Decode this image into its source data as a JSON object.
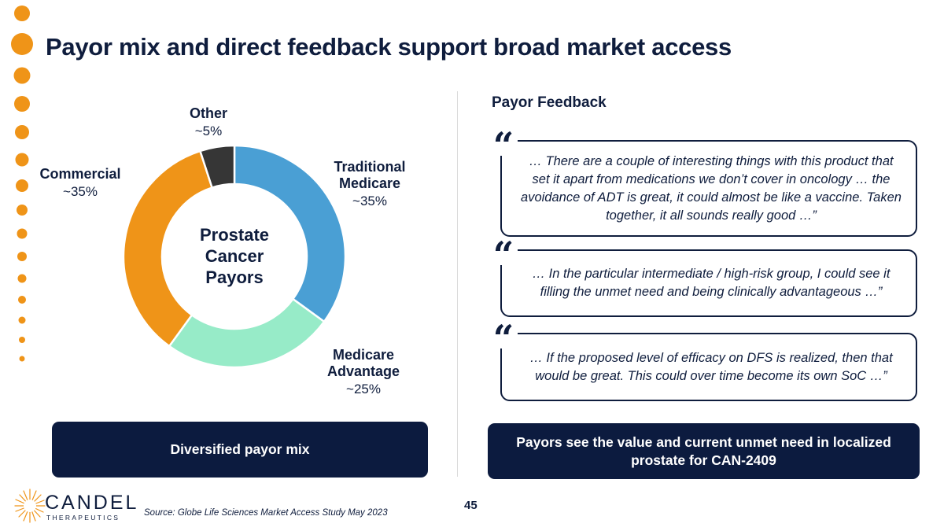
{
  "title": "Payor mix and direct feedback support broad market access",
  "chart_data": {
    "type": "pie",
    "donut": true,
    "center_label": [
      "Prostate",
      "Cancer",
      "Payors"
    ],
    "slices": [
      {
        "name": "Traditional Medicare",
        "name_lines": [
          "Traditional",
          "Medicare"
        ],
        "label": "~35%",
        "value": 35,
        "color": "#4a9fd4"
      },
      {
        "name": "Medicare Advantage",
        "name_lines": [
          "Medicare",
          "Advantage"
        ],
        "label": "~25%",
        "value": 25,
        "color": "#97ebc8"
      },
      {
        "name": "Commercial",
        "name_lines": [
          "Commercial"
        ],
        "label": "~35%",
        "value": 35,
        "color": "#ef9418"
      },
      {
        "name": "Other",
        "name_lines": [
          "Other"
        ],
        "label": "~5%",
        "value": 5,
        "color": "#363636"
      }
    ]
  },
  "feedback": {
    "heading": "Payor Feedback",
    "quote_mark": "“",
    "quotes": [
      "… There are a couple of interesting things with this product that set it apart from medications we don’t cover in oncology … the avoidance of ADT is great, it could almost be like a vaccine. Taken together, it all sounds really good …”",
      "… In the particular intermediate / high-risk group, I could see it filling the unmet need and being clinically advantageous …”",
      "… If the proposed level of efficacy on DFS is realized, then that would be great. This could over time become its own SoC …”"
    ]
  },
  "callouts": {
    "left": "Diversified payor mix",
    "right": "Payors see the value and current unmet need in localized prostate for CAN-2409"
  },
  "footer": {
    "page_number": "45",
    "source": "Source: Globe Life Sciences Market Access Study May 2023",
    "logo_name": "CANDEL",
    "logo_sub": "THERAPEUTICS"
  },
  "colors": {
    "navy": "#0f1d3d",
    "orange": "#ef9418"
  }
}
